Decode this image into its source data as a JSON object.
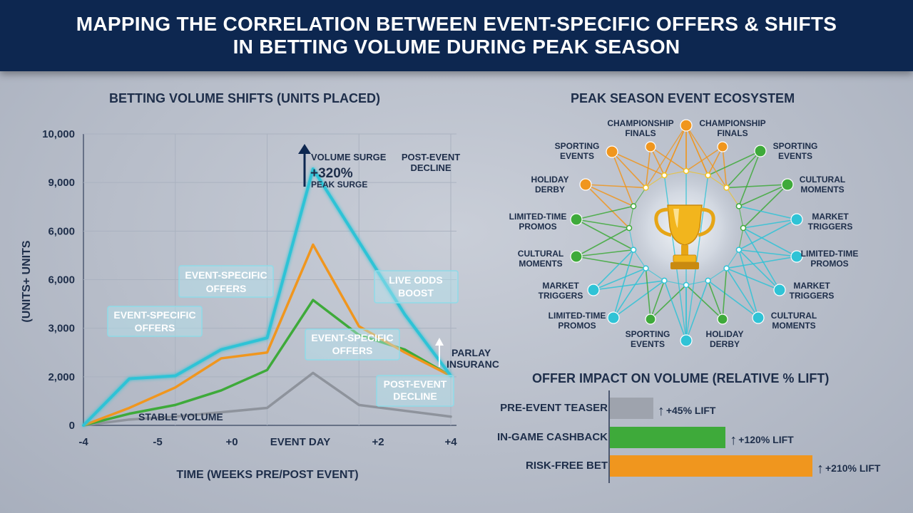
{
  "header": {
    "title_line1": "MAPPING THE CORRELATION BETWEEN EVENT-SPECIFIC OFFERS & SHIFTS",
    "title_line2": "IN BETTING VOLUME DURING PEAK SEASON"
  },
  "line_chart": {
    "title": "BETTING VOLUME SHIFTS (UNITS PLACED)",
    "ylabel": "(UNITS+ UNITS",
    "xlabel": "TIME (WEEKS PRE/POST EVENT)",
    "y_tick_labels": [
      "0",
      "2,000",
      "3,000",
      "6,000",
      "6,000",
      "9,000",
      "10,000"
    ],
    "x_tick_labels": [
      "-4",
      "-5",
      "+0",
      "EVENT DAY",
      "+2",
      "+4"
    ],
    "annotations": {
      "surge_1": "VOLUME SURGE",
      "surge_2": "+320%",
      "surge_3": "PEAK SURGE",
      "post_top_1": "POST-EVENT",
      "post_top_2": "DECLINE",
      "box_a_1": "EVENT-SPECIFIC",
      "box_a_2": "OFFERS",
      "box_b_1": "EVENT-SPECIFIC",
      "box_b_2": "OFFERS",
      "box_c_1": "EVENT-SPECIFIC",
      "box_c_2": "OFFERS",
      "live_1": "LIVE ODDS",
      "live_2": "BOOST",
      "parlay_1": "PARLAY",
      "parlay_2": "INSURANCE",
      "post_bot_1": "POST-EVENT",
      "post_bot_2": "DECLINE",
      "stable": "STABLE VOLUME"
    }
  },
  "ecosystem": {
    "title": "PEAK SEASON EVENT ECOSYSTEM",
    "labels": {
      "champ_left_1": "CHAMPIONSHIP",
      "champ_left_2": "FINALS",
      "champ_right_1": "CHAMPIONSHIP",
      "champ_right_2": "FINALS",
      "sport_tl_1": "SPORTING",
      "sport_tl_2": "EVENTS",
      "sport_tr_1": "SPORTING",
      "sport_tr_2": "EVENTS",
      "holiday_l_1": "HOLIDAY",
      "holiday_l_2": "DERBY",
      "cultural_r_1": "CULTURAL",
      "cultural_r_2": "MOMENTS",
      "ltp_l_1": "LIMITED-TIME",
      "ltp_l_2": "PROMOS",
      "market_r_1": "MARKET",
      "market_r_2": "TRIGGERS",
      "cultural_l_1": "CULTURAL",
      "cultural_l_2": "MOMENTS",
      "ltp_r_1": "LIMITED-TIME",
      "ltp_r_2": "PROMOS",
      "market_l_1": "MARKET",
      "market_l_2": "TRIGGERS",
      "market_r2_1": "MARKET",
      "market_r2_2": "TRIGGERS",
      "ltp_bl_1": "LIMITED-TIME",
      "ltp_bl_2": "PROMOS",
      "cultural_br_1": "CULTURAL",
      "cultural_br_2": "MOMENTS",
      "sport_b_1": "SPORTING",
      "sport_b_2": "EVENTS",
      "holiday_b_1": "HOLIDAY",
      "holiday_b_2": "DERBY"
    },
    "trophy_icon": "trophy-icon"
  },
  "bar_chart": {
    "title": "OFFER IMPACT ON VOLUME (RELATIVE % LIFT)",
    "bars": [
      {
        "label": "PRE-EVENT TEASER",
        "note": "+45% LIFT",
        "color": "#9ea3ad"
      },
      {
        "label": "IN-GAME CASHBACK",
        "note": "+120% LIFT",
        "color": "#3eaa3a"
      },
      {
        "label": "RISK-FREE BET",
        "note": "+210% LIFT",
        "color": "#f0961e"
      }
    ]
  },
  "chart_data": [
    {
      "type": "line",
      "title": "BETTING VOLUME SHIFTS (UNITS PLACED)",
      "xlabel": "TIME (WEEKS PRE/POST EVENT)",
      "ylabel": "(UNITS+ UNITS",
      "x_tick_labels": [
        "-4",
        "-5",
        "+0",
        "EVENT DAY",
        "+2",
        "+4"
      ],
      "y_tick_labels": [
        "0",
        "2,000",
        "3,000",
        "6,000",
        "6,000",
        "9,000",
        "10,000"
      ],
      "x": [
        -4,
        -3,
        -2,
        -1,
        0,
        1,
        2,
        3,
        4
      ],
      "series": [
        {
          "color": "#2fc3d6",
          "values": [
            0,
            1600,
            1700,
            2600,
            3000,
            8800,
            6300,
            3800,
            1700
          ]
        },
        {
          "color": "#f0961e",
          "values": [
            0,
            600,
            1300,
            2300,
            2500,
            6200,
            3400,
            2500,
            1700
          ]
        },
        {
          "color": "#3eaa3a",
          "values": [
            0,
            400,
            700,
            1200,
            1900,
            4300,
            3100,
            2600,
            1700
          ]
        },
        {
          "color": "#8e939c",
          "values": [
            0,
            200,
            300,
            450,
            600,
            1800,
            700,
            500,
            300
          ]
        }
      ]
    },
    {
      "type": "bar",
      "title": "OFFER IMPACT ON VOLUME (RELATIVE % LIFT)",
      "categories": [
        "PRE-EVENT TEASER",
        "IN-GAME CASHBACK",
        "RISK-FREE BET"
      ],
      "values": [
        45,
        120,
        210
      ],
      "unit": "% LIFT"
    }
  ]
}
